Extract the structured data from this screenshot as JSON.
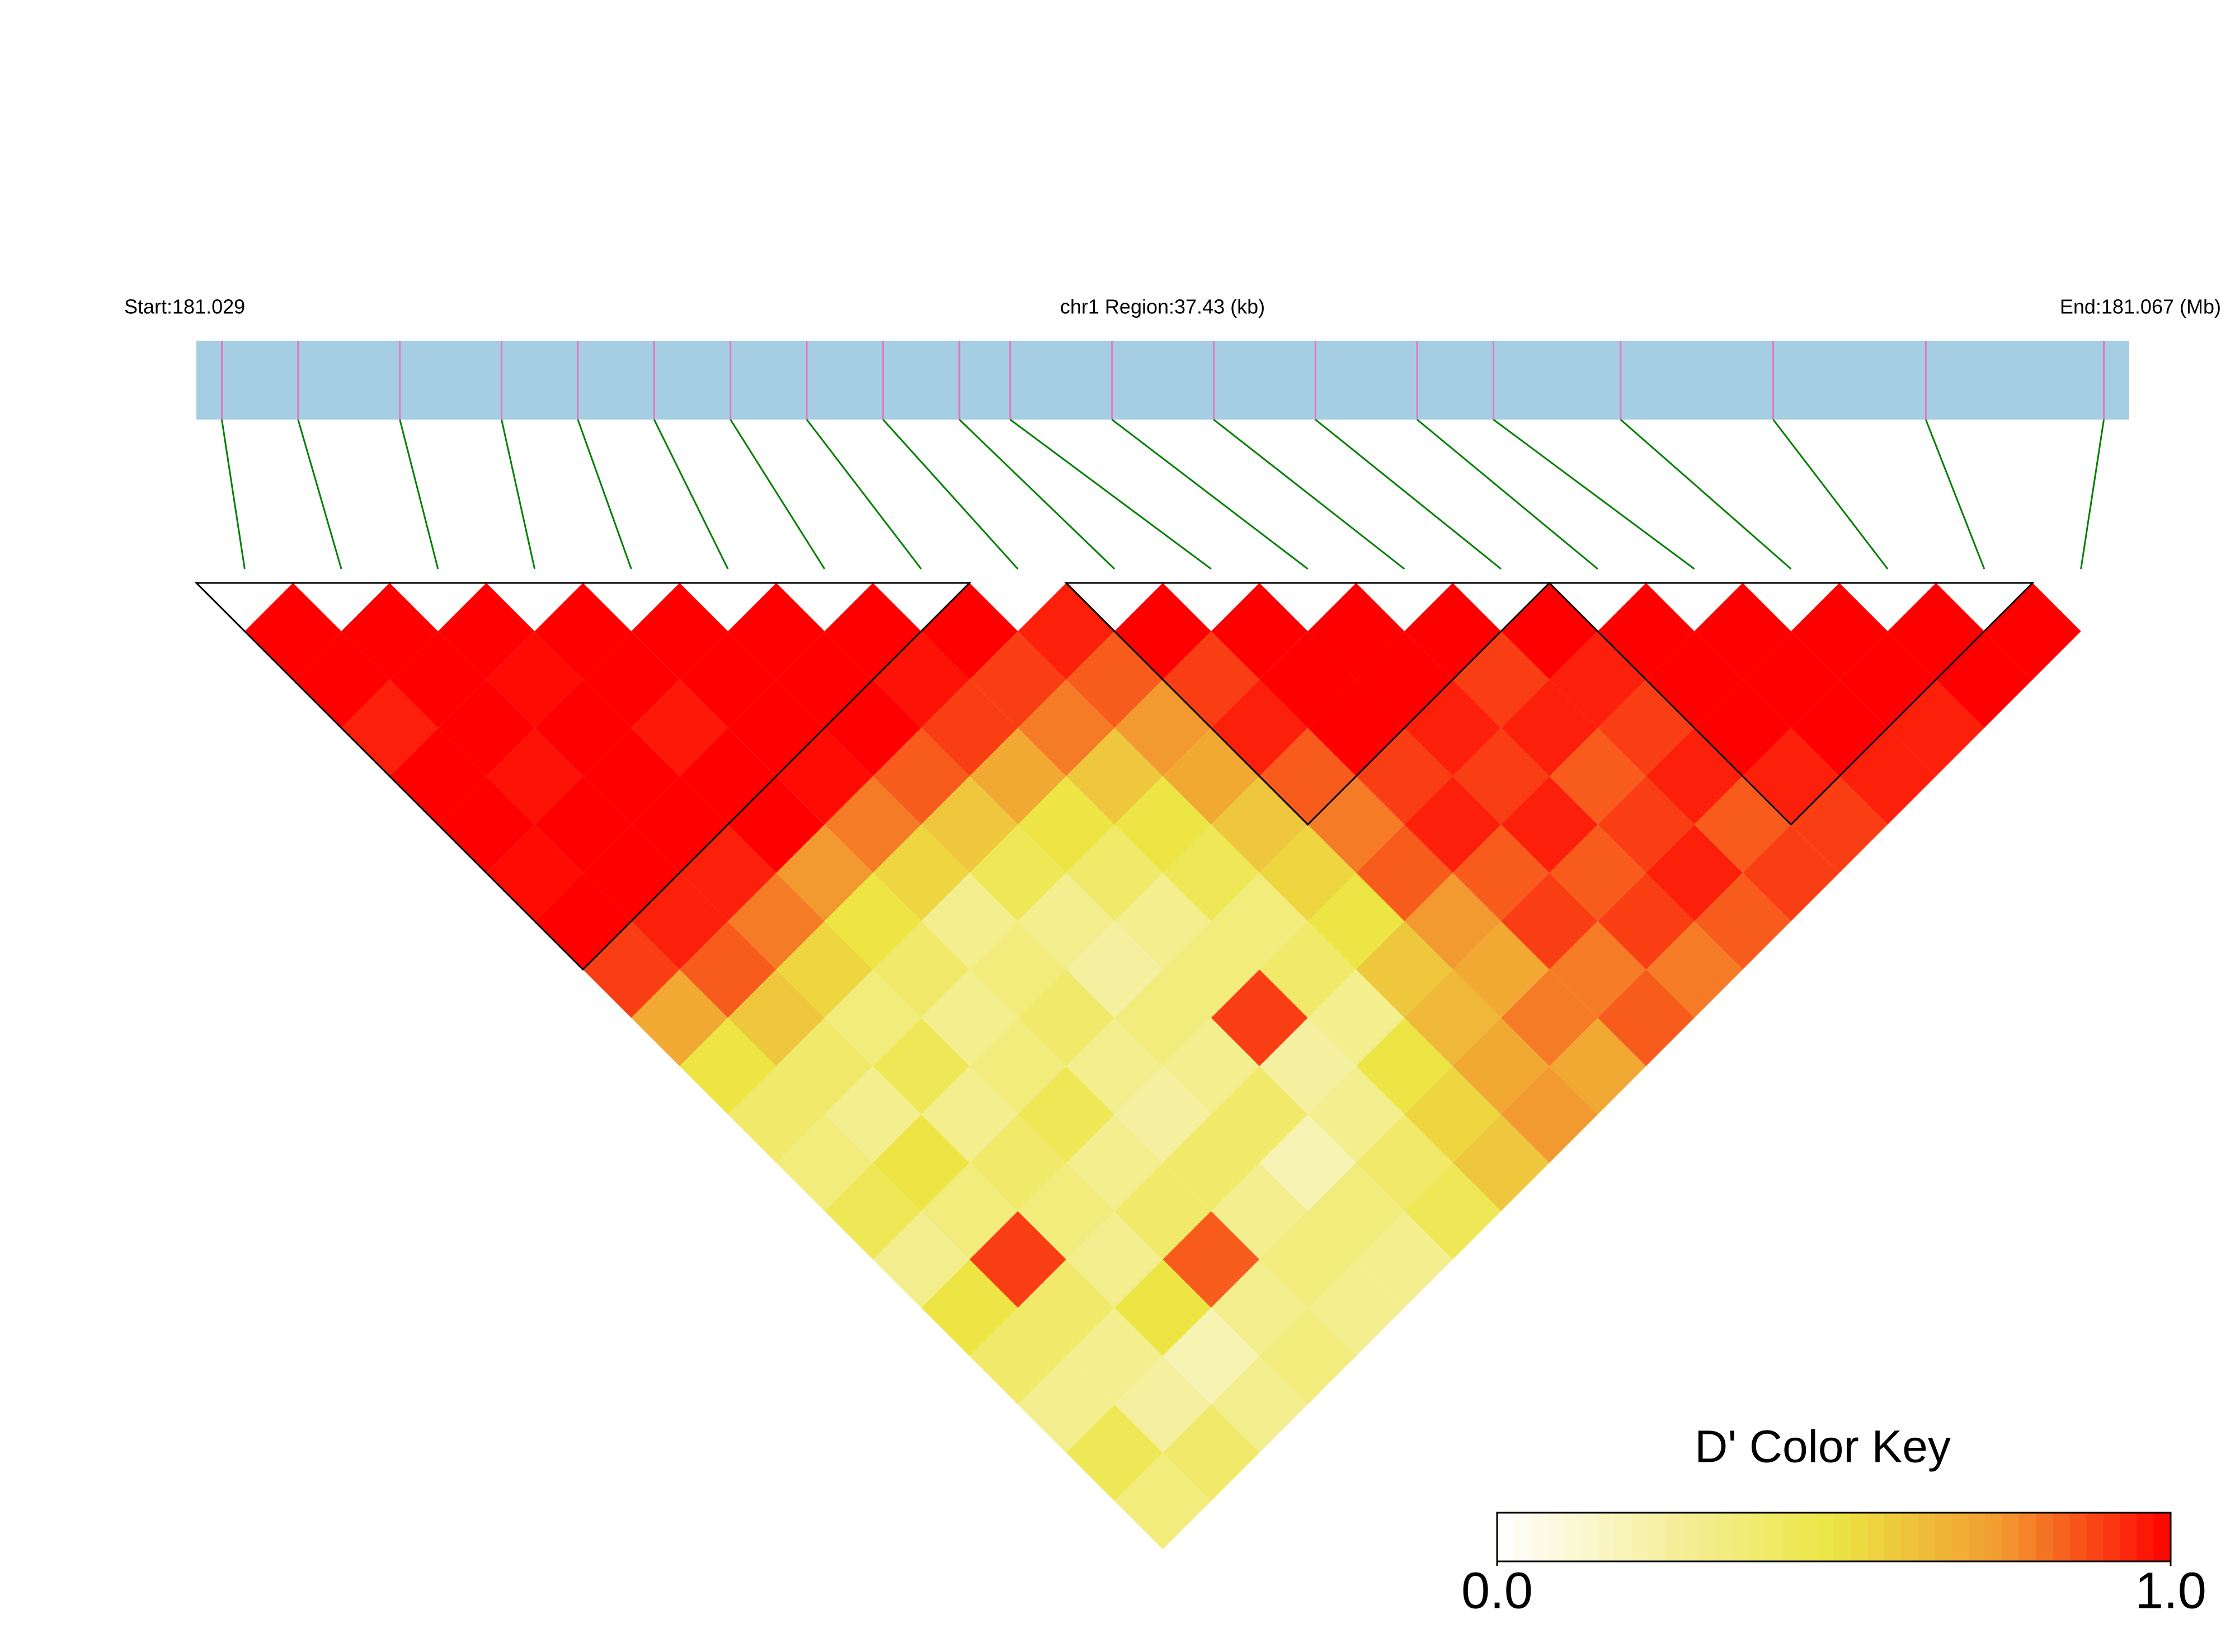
{
  "chart_data": {
    "type": "ld_heatmap",
    "start_label": "Start:181.029",
    "region_label": "chr1 Region:37.43 (kb)",
    "end_label": "End:181.067 (Mb)",
    "xlim": [
      181.029,
      181.067
    ],
    "positions": [
      181.0295,
      181.031,
      181.033,
      181.035,
      181.0365,
      181.038,
      181.0395,
      181.041,
      181.0425,
      181.044,
      181.045,
      181.047,
      181.049,
      181.051,
      181.053,
      181.0545,
      181.057,
      181.06,
      181.063,
      181.0665
    ],
    "bar_color": "#a6cee3",
    "marker_color": "#e377c2",
    "connector_color": "#008000",
    "values": [
      [
        1,
        1,
        0.95,
        1,
        1,
        0.98,
        1,
        0.9,
        0.7,
        0.5,
        0.4,
        0.35,
        0.45,
        0.3,
        0.5,
        0.4,
        0.3,
        0.45,
        0.35
      ],
      [
        1,
        1,
        1,
        0.97,
        1,
        1,
        0.95,
        0.85,
        0.6,
        0.4,
        0.3,
        0.5,
        0.35,
        0.9,
        0.4,
        0.3,
        0.25,
        0.4
      ],
      [
        1,
        0.98,
        1,
        1,
        1,
        0.95,
        0.8,
        0.55,
        0.35,
        0.45,
        0.3,
        0.4,
        0.35,
        0.3,
        0.5,
        0.2,
        0.3
      ],
      [
        1,
        1,
        0.96,
        1,
        1,
        0.75,
        0.5,
        0.4,
        0.3,
        0.35,
        0.45,
        0.3,
        0.4,
        0.85,
        0.3,
        0.35
      ],
      [
        1,
        1,
        1,
        0.98,
        0.8,
        0.55,
        0.3,
        0.35,
        0.4,
        0.3,
        0.25,
        0.4,
        0.3,
        0.35,
        0.3
      ],
      [
        1,
        1,
        1,
        0.85,
        0.6,
        0.45,
        0.3,
        0.25,
        0.35,
        0.3,
        0.4,
        0.2,
        0.35,
        0.3
      ],
      [
        1,
        0.97,
        0.9,
        0.7,
        0.5,
        0.4,
        0.3,
        0.35,
        0.9,
        0.25,
        0.3,
        0.4,
        0.45
      ],
      [
        1,
        0.9,
        0.8,
        0.6,
        0.5,
        0.45,
        0.35,
        0.4,
        0.3,
        0.5,
        0.55,
        0.6
      ],
      [
        0.95,
        0.85,
        0.75,
        0.7,
        0.6,
        0.55,
        0.5,
        0.6,
        0.65,
        0.7,
        0.75
      ],
      [
        1,
        0.9,
        0.95,
        0.85,
        0.8,
        0.85,
        0.75,
        0.7,
        0.8,
        0.7
      ],
      [
        1,
        1,
        1,
        0.9,
        0.95,
        0.85,
        0.9,
        0.8,
        0.85
      ],
      [
        1,
        1,
        0.95,
        0.9,
        0.95,
        0.85,
        0.9,
        0.8
      ],
      [
        1,
        0.9,
        0.95,
        0.85,
        0.9,
        0.95,
        0.85
      ],
      [
        1,
        0.95,
        0.9,
        0.95,
        0.85,
        0.9
      ],
      [
        1,
        1,
        1,
        0.95,
        0.9
      ],
      [
        1,
        1,
        1,
        0.95
      ],
      [
        1,
        1,
        0.95
      ],
      [
        1,
        1
      ],
      [
        1
      ]
    ],
    "blocks": [
      [
        0,
        7
      ],
      [
        9,
        13
      ],
      [
        14,
        18
      ]
    ],
    "colorscale": [
      "#ffffff",
      "#f5f0a0",
      "#ece544",
      "#f29a30",
      "#ff0000"
    ],
    "key_title": "D' Color Key",
    "key_lim": [
      0,
      1
    ],
    "key_ticks": [
      {
        "value": 0,
        "label": "0.0"
      },
      {
        "value": 1,
        "label": "1.0"
      }
    ]
  }
}
